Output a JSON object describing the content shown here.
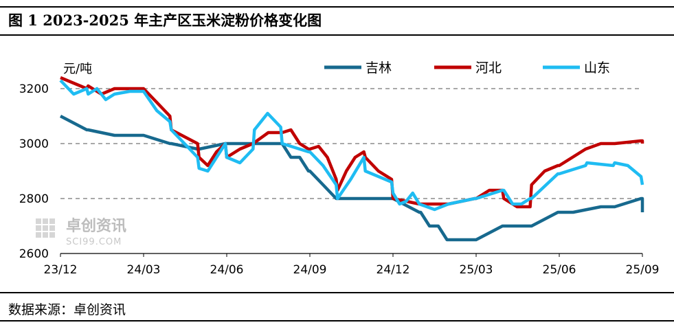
{
  "header": {
    "title": "图 1  2023-2025 年主产区玉米淀粉价格变化图"
  },
  "footer": {
    "source": "数据来源：卓创资讯"
  },
  "watermark": {
    "brand": "卓创资讯",
    "site": "SCI99.COM"
  },
  "chart_data": {
    "type": "line",
    "title": "图 1  2023-2025 年主产区玉米淀粉价格变化图",
    "ylabel": "元/吨",
    "xlabel": "",
    "ylim": [
      2600,
      3250
    ],
    "yticks": [
      2600,
      2800,
      3000,
      3200
    ],
    "xticks": [
      "23/12",
      "24/03",
      "24/06",
      "24/09",
      "24/12",
      "25/03",
      "25/06",
      "25/09"
    ],
    "grid": "horizontal dashed",
    "legend_position": "top",
    "series": [
      {
        "name": "吉林",
        "color": "#17698e",
        "points": [
          [
            "23/12",
            3100
          ],
          [
            "23/12",
            3050
          ],
          [
            "24/01",
            3050
          ],
          [
            "24/01",
            3030
          ],
          [
            "24/03",
            3030
          ],
          [
            "24/03",
            3000
          ],
          [
            "24/04",
            3000
          ],
          [
            "24/04",
            2980
          ],
          [
            "24/05",
            2980
          ],
          [
            "24/05",
            3000
          ],
          [
            "24/08",
            3000
          ],
          [
            "24/08",
            2950
          ],
          [
            "24/08",
            2950
          ],
          [
            "24/08",
            2900
          ],
          [
            "24/09",
            2900
          ],
          [
            "24/09",
            2850
          ],
          [
            "24/09",
            2800
          ],
          [
            "24/12",
            2800
          ],
          [
            "24/12",
            2750
          ],
          [
            "25/01",
            2750
          ],
          [
            "25/01",
            2700
          ],
          [
            "25/01",
            2700
          ],
          [
            "25/01",
            2650
          ],
          [
            "25/03",
            2650
          ],
          [
            "25/03",
            2700
          ],
          [
            "25/05",
            2700
          ],
          [
            "25/05",
            2750
          ],
          [
            "25/06",
            2750
          ],
          [
            "25/07",
            2770
          ],
          [
            "25/08",
            2770
          ],
          [
            "25/08",
            2800
          ],
          [
            "25/09",
            2800
          ],
          [
            "25/09",
            2750
          ],
          [
            "25/09",
            2750
          ]
        ]
      },
      {
        "name": "河北",
        "color": "#c00000",
        "points": [
          [
            "23/12",
            3240
          ],
          [
            "23/12",
            3220
          ],
          [
            "23/12",
            3200
          ],
          [
            "24/01",
            3210
          ],
          [
            "24/01",
            3180
          ],
          [
            "24/01",
            3200
          ],
          [
            "24/02",
            3200
          ],
          [
            "24/03",
            3200
          ],
          [
            "24/03",
            3150
          ],
          [
            "24/03",
            3100
          ],
          [
            "24/04",
            3050
          ],
          [
            "24/04",
            3000
          ],
          [
            "24/05",
            2950
          ],
          [
            "24/05",
            2920
          ],
          [
            "24/05",
            2970
          ],
          [
            "24/05",
            3000
          ],
          [
            "24/06",
            2950
          ],
          [
            "24/06",
            2980
          ],
          [
            "24/06",
            3000
          ],
          [
            "24/07",
            3040
          ],
          [
            "24/08",
            3040
          ],
          [
            "24/08",
            3050
          ],
          [
            "24/08",
            3000
          ],
          [
            "24/08",
            2980
          ],
          [
            "24/09",
            2980
          ],
          [
            "24/09",
            2990
          ],
          [
            "24/09",
            2950
          ],
          [
            "24/09",
            2870
          ],
          [
            "24/10",
            2830
          ],
          [
            "24/10",
            2900
          ],
          [
            "24/10",
            2950
          ],
          [
            "24/10",
            2970
          ],
          [
            "24/11",
            2950
          ],
          [
            "24/11",
            2900
          ],
          [
            "24/11",
            2870
          ],
          [
            "24/12",
            2800
          ],
          [
            "24/12",
            2780
          ],
          [
            "25/02",
            2780
          ],
          [
            "25/02",
            2800
          ],
          [
            "25/03",
            2800
          ],
          [
            "25/03",
            2830
          ],
          [
            "25/03",
            2830
          ],
          [
            "25/04",
            2800
          ],
          [
            "25/04",
            2770
          ],
          [
            "25/04",
            2770
          ],
          [
            "25/05",
            2850
          ],
          [
            "25/05",
            2900
          ],
          [
            "25/05",
            2920
          ],
          [
            "25/06",
            2920
          ],
          [
            "25/06",
            2950
          ],
          [
            "25/06",
            2980
          ],
          [
            "25/07",
            3000
          ],
          [
            "25/08",
            3000
          ],
          [
            "25/08",
            3010
          ],
          [
            "25/09",
            3010
          ],
          [
            "25/09",
            3000
          ],
          [
            "25/09",
            3000
          ]
        ]
      },
      {
        "name": "山东",
        "color": "#1fbcf2",
        "points": [
          [
            "23/12",
            3230
          ],
          [
            "23/12",
            3180
          ],
          [
            "23/12",
            3200
          ],
          [
            "24/01",
            3180
          ],
          [
            "24/01",
            3200
          ],
          [
            "24/01",
            3160
          ],
          [
            "24/01",
            3180
          ],
          [
            "24/02",
            3190
          ],
          [
            "24/03",
            3190
          ],
          [
            "24/03",
            3120
          ],
          [
            "24/03",
            3080
          ],
          [
            "24/04",
            3050
          ],
          [
            "24/04",
            3000
          ],
          [
            "24/04",
            2950
          ],
          [
            "24/05",
            2910
          ],
          [
            "24/05",
            2900
          ],
          [
            "24/05",
            2950
          ],
          [
            "24/05",
            3000
          ],
          [
            "24/06",
            2950
          ],
          [
            "24/06",
            2930
          ],
          [
            "24/06",
            2980
          ],
          [
            "24/07",
            3050
          ],
          [
            "24/07",
            3110
          ],
          [
            "24/07",
            3060
          ],
          [
            "24/08",
            3000
          ],
          [
            "24/08",
            2970
          ],
          [
            "24/09",
            2970
          ],
          [
            "24/09",
            2920
          ],
          [
            "24/09",
            2850
          ],
          [
            "24/10",
            2800
          ],
          [
            "24/10",
            2870
          ],
          [
            "24/10",
            2950
          ],
          [
            "24/11",
            2900
          ],
          [
            "24/11",
            2860
          ],
          [
            "24/12",
            2820
          ],
          [
            "24/12",
            2780
          ],
          [
            "24/12",
            2790
          ],
          [
            "24/12",
            2820
          ],
          [
            "24/12",
            2780
          ],
          [
            "25/01",
            2760
          ],
          [
            "25/02",
            2780
          ],
          [
            "25/02",
            2800
          ],
          [
            "25/03",
            2800
          ],
          [
            "25/03",
            2830
          ],
          [
            "25/04",
            2830
          ],
          [
            "25/04",
            2780
          ],
          [
            "25/04",
            2780
          ],
          [
            "25/04",
            2800
          ],
          [
            "25/05",
            2800
          ],
          [
            "25/05",
            2890
          ],
          [
            "25/06",
            2890
          ],
          [
            "25/06",
            2920
          ],
          [
            "25/07",
            2930
          ],
          [
            "25/07",
            2920
          ],
          [
            "25/08",
            2930
          ],
          [
            "25/08",
            2920
          ],
          [
            "25/08",
            2880
          ],
          [
            "25/09",
            2850
          ],
          [
            "25/09",
            2850
          ]
        ]
      }
    ]
  }
}
